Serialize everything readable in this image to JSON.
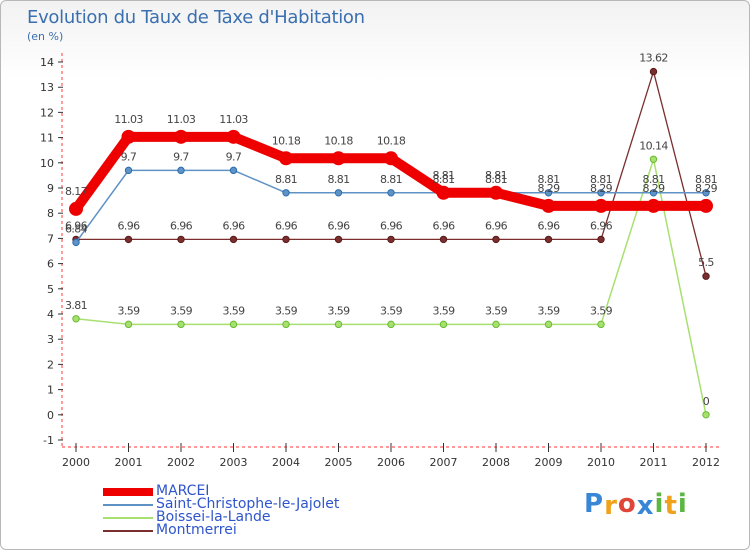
{
  "chart_data": {
    "type": "line",
    "title": "Evolution du Taux de Taxe d'Habitation",
    "subtitle": "(en %)",
    "xlabel": "",
    "ylabel": "",
    "categories": [
      "2000",
      "2001",
      "2002",
      "2003",
      "2004",
      "2005",
      "2006",
      "2007",
      "2008",
      "2009",
      "2010",
      "2011",
      "2012"
    ],
    "ylim": [
      -1,
      14
    ],
    "yticks": [
      "-1",
      "0",
      "1",
      "2",
      "3",
      "4",
      "5",
      "6",
      "7",
      "8",
      "9",
      "10",
      "11",
      "12",
      "13",
      "14"
    ],
    "grid": false,
    "legend_position": "bottom-left",
    "series": [
      {
        "name": "MARCEI",
        "color": "#ee0000",
        "values": [
          8.17,
          11.03,
          11.03,
          11.03,
          10.18,
          10.18,
          10.18,
          8.81,
          8.81,
          8.29,
          8.29,
          8.29,
          8.29
        ],
        "labels": [
          "8.17",
          "11.03",
          "11.03",
          "11.03",
          "10.18",
          "10.18",
          "10.18",
          "8.81",
          "8.81",
          "8.29",
          "8.29",
          "8.29",
          "8.29"
        ]
      },
      {
        "name": "Saint-Christophe-le-Jajolet",
        "color": "#5f93c6",
        "values": [
          6.84,
          9.7,
          9.7,
          9.7,
          8.81,
          8.81,
          8.81,
          8.81,
          8.81,
          8.81,
          8.81,
          8.81,
          8.81
        ],
        "labels": [
          "6.84",
          "9.7",
          "9.7",
          "9.7",
          "8.81",
          "8.81",
          "8.81",
          "8.81",
          "8.81",
          "8.81",
          "8.81",
          "8.81",
          "8.81"
        ]
      },
      {
        "name": "Boissei-la-Lande",
        "color": "#a8e070",
        "values": [
          3.81,
          3.59,
          3.59,
          3.59,
          3.59,
          3.59,
          3.59,
          3.59,
          3.59,
          3.59,
          3.59,
          10.14,
          0
        ],
        "labels": [
          "3.81",
          "3.59",
          "3.59",
          "3.59",
          "3.59",
          "3.59",
          "3.59",
          "3.59",
          "3.59",
          "3.59",
          "3.59",
          "10.14",
          "0"
        ]
      },
      {
        "name": "Montmerrei",
        "color": "#7a2e2e",
        "values": [
          6.96,
          6.96,
          6.96,
          6.96,
          6.96,
          6.96,
          6.96,
          6.96,
          6.96,
          6.96,
          6.96,
          13.62,
          5.5
        ],
        "labels": [
          "6.96",
          "6.96",
          "6.96",
          "6.96",
          "6.96",
          "6.96",
          "6.96",
          "6.96",
          "6.96",
          "6.96",
          "6.96",
          "13.62",
          "5.5"
        ]
      }
    ]
  },
  "brand": {
    "text": "Proxiti",
    "colors": [
      "#3a86d6",
      "#f1a21b",
      "#e0453a",
      "#3a86d6",
      "#5bb642",
      "#f1a21b",
      "#5bb642"
    ]
  }
}
